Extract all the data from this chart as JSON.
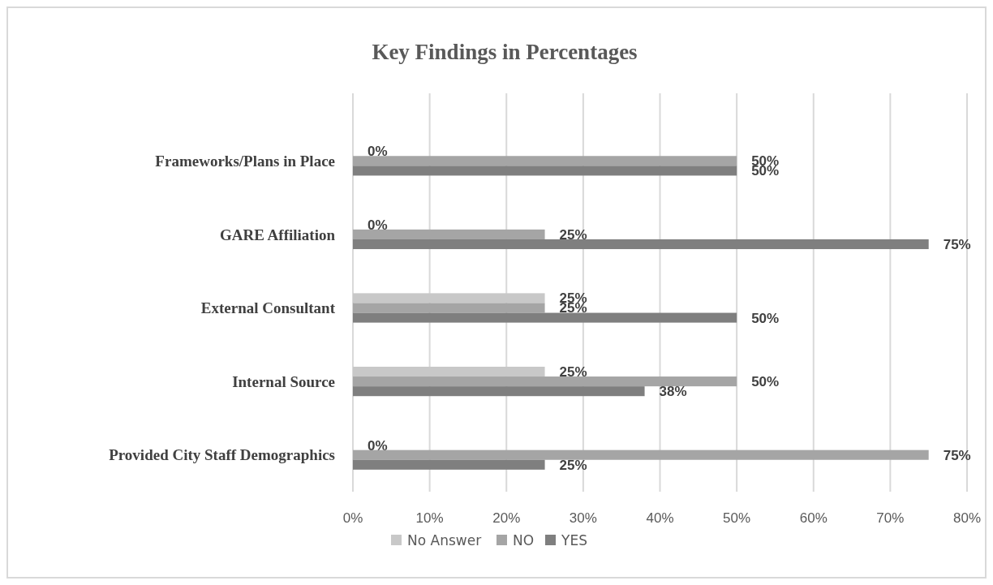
{
  "chart_data": {
    "type": "bar",
    "orientation": "horizontal",
    "title": "Key Findings in Percentages",
    "categories": [
      "Frameworks/Plans in Place",
      "GARE Affiliation",
      "External Consultant",
      "Internal Source",
      "Provided City Staff Demographics"
    ],
    "series": [
      {
        "name": "No Answer",
        "color": "#c8c8c8",
        "values": [
          0,
          0,
          25,
          25,
          0
        ],
        "value_labels": [
          "0%",
          "0%",
          "25%",
          "25%",
          "0%"
        ]
      },
      {
        "name": "NO",
        "color": "#a5a5a5",
        "values": [
          50,
          25,
          25,
          50,
          75
        ],
        "value_labels": [
          "50%",
          "25%",
          "25%",
          "50%",
          "75%"
        ]
      },
      {
        "name": "YES",
        "color": "#7f7f7f",
        "values": [
          50,
          75,
          50,
          38,
          25
        ],
        "value_labels": [
          "50%",
          "75%",
          "50%",
          "38%",
          "25%"
        ]
      }
    ],
    "xlim": [
      0,
      80
    ],
    "xticks": [
      {
        "value": 0,
        "label": "0%"
      },
      {
        "value": 10,
        "label": "10%"
      },
      {
        "value": 20,
        "label": "20%"
      },
      {
        "value": 30,
        "label": "30%"
      },
      {
        "value": 40,
        "label": "40%"
      },
      {
        "value": 50,
        "label": "50%"
      },
      {
        "value": 60,
        "label": "60%"
      },
      {
        "value": 70,
        "label": "70%"
      },
      {
        "value": 80,
        "label": "80%"
      }
    ],
    "grid": "x",
    "legend": "bottom"
  }
}
